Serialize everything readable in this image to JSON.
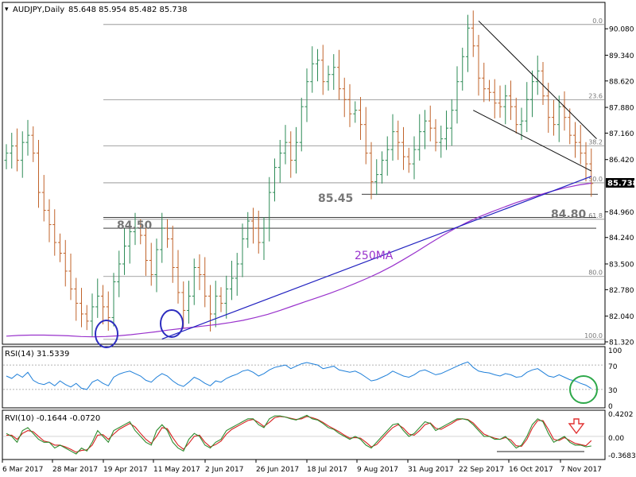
{
  "header": {
    "symbol": "AUDJPY,Daily",
    "ohlc": "85.648 85.954 85.482 85.738"
  },
  "price_axis": {
    "ticks": [
      "90.080",
      "89.340",
      "88.620",
      "87.880",
      "87.160",
      "86.420",
      "84.960",
      "84.240",
      "83.500",
      "82.780",
      "82.040",
      "81.320"
    ],
    "current_price": "85.738"
  },
  "fib_levels": [
    "0.0",
    "23.6",
    "38.2",
    "50.0",
    "61.8",
    "80.0",
    "100.0"
  ],
  "annotations": {
    "level_1": "84.50",
    "level_2": "85.45",
    "level_3": "84.80",
    "ma_label": "250MA"
  },
  "rsi_panel": {
    "label": "RSI(14) 31.5339",
    "ticks": [
      "100",
      "70",
      "30",
      "0"
    ]
  },
  "rvi_panel": {
    "label": "RVI(10) -0.1644 -0.0720",
    "ticks": [
      "0.4202",
      "0.00",
      "-0.3683"
    ]
  },
  "x_axis": {
    "dates": [
      "6 Mar 2017",
      "28 Mar 2017",
      "19 Apr 2017",
      "11 May 2017",
      "2 Jun 2017",
      "26 Jun 2017",
      "18 Jul 2017",
      "9 Aug 2017",
      "31 Aug 2017",
      "22 Sep 2017",
      "16 Oct 2017",
      "7 Nov 2017"
    ]
  },
  "colors": {
    "bull": "#2e8b57",
    "bear": "#c0632a",
    "ma": "#9932cc",
    "trendline": "#1f1fbf",
    "rsi_line": "#1e7fd9",
    "rvi_main": "#2e8b2e",
    "rvi_signal": "#d62020",
    "circle_blue": "#2d2dbf",
    "circle_green": "#2ea84a",
    "arrow": "#e03030"
  },
  "chart_data": {
    "type": "candlestick",
    "title": "AUDJPY,Daily",
    "price_range": [
      81.32,
      90.44
    ],
    "x": [
      "6 Mar 2017",
      "28 Mar 2017",
      "19 Apr 2017",
      "11 May 2017",
      "2 Jun 2017",
      "26 Jun 2017",
      "18 Jul 2017",
      "9 Aug 2017",
      "31 Aug 2017",
      "22 Sep 2017",
      "16 Oct 2017",
      "7 Nov 2017"
    ],
    "close_path": [
      86.6,
      86.8,
      86.4,
      86.9,
      87.1,
      86.6,
      85.5,
      85.0,
      84.6,
      84.1,
      83.8,
      83.3,
      82.8,
      82.4,
      82.1,
      81.9,
      82.3,
      82.6,
      82.3,
      82.0,
      83.0,
      83.5,
      84.0,
      84.4,
      84.5,
      84.3,
      83.6,
      83.2,
      83.9,
      84.5,
      84.2,
      83.4,
      82.7,
      82.2,
      82.6,
      83.4,
      83.2,
      82.6,
      82.1,
      82.6,
      82.4,
      82.8,
      83.1,
      83.5,
      84.2,
      84.7,
      84.5,
      84.1,
      84.5,
      85.5,
      86.2,
      86.6,
      86.9,
      86.4,
      86.9,
      87.9,
      88.6,
      89.1,
      89.2,
      88.6,
      88.8,
      89.0,
      88.4,
      88.1,
      87.7,
      87.8,
      87.4,
      86.6,
      85.8,
      86.0,
      86.4,
      86.7,
      87.2,
      86.9,
      86.5,
      86.3,
      86.7,
      87.2,
      87.5,
      87.3,
      86.9,
      87.0,
      87.3,
      87.8,
      88.6,
      89.3,
      90.1,
      89.6,
      88.7,
      88.4,
      88.3,
      88.0,
      87.9,
      88.2,
      87.9,
      87.4,
      87.5,
      88.1,
      88.6,
      88.9,
      88.2,
      87.6,
      87.4,
      87.9,
      87.6,
      87.1,
      86.9,
      86.6,
      86.3,
      85.75
    ],
    "ma250_path": [
      81.48,
      81.5,
      81.51,
      81.51,
      81.5,
      81.49,
      81.47,
      81.46,
      81.47,
      81.49,
      81.52,
      81.56,
      81.6,
      81.65,
      81.69,
      81.73,
      81.77,
      81.81,
      81.86,
      81.92,
      82.0,
      82.09,
      82.2,
      82.32,
      82.44,
      82.56,
      82.68,
      82.81,
      82.95,
      83.1,
      83.26,
      83.44,
      83.64,
      83.85,
      84.07,
      84.28,
      84.48,
      84.66,
      84.82,
      84.96,
      85.09,
      85.22,
      85.33,
      85.45,
      85.55,
      85.64,
      85.71,
      85.76
    ],
    "fib_retracement": {
      "0.0": 90.2,
      "23.6": 88.09,
      "38.2": 86.8,
      "50.0": 85.77,
      "61.8": 84.75,
      "80.0": 83.15,
      "100.0": 81.39
    },
    "horizontal_levels": [
      84.5,
      85.45,
      84.8
    ],
    "channel_upper": [
      [
        88,
        90.3
      ],
      [
        110,
        87.0
      ]
    ],
    "channel_lower": [
      [
        87,
        87.8
      ],
      [
        109,
        86.1
      ]
    ],
    "uptrend_line": [
      [
        29,
        81.4
      ],
      [
        109,
        85.95
      ]
    ],
    "rsi": {
      "name": "RSI(14)",
      "ylim": [
        0,
        100
      ],
      "levels": [
        70,
        30
      ],
      "values": [
        52,
        48,
        55,
        50,
        58,
        45,
        40,
        38,
        42,
        36,
        44,
        38,
        34,
        40,
        32,
        30,
        42,
        46,
        40,
        36,
        50,
        55,
        58,
        60,
        56,
        52,
        45,
        42,
        50,
        56,
        52,
        44,
        38,
        35,
        42,
        50,
        46,
        40,
        36,
        44,
        42,
        48,
        52,
        55,
        60,
        62,
        58,
        52,
        56,
        62,
        66,
        68,
        70,
        64,
        68,
        72,
        74,
        72,
        70,
        64,
        66,
        68,
        62,
        60,
        58,
        60,
        56,
        50,
        44,
        46,
        50,
        54,
        60,
        56,
        52,
        50,
        54,
        60,
        62,
        58,
        54,
        56,
        60,
        64,
        68,
        72,
        75,
        66,
        60,
        58,
        57,
        54,
        52,
        56,
        54,
        50,
        51,
        58,
        62,
        64,
        58,
        52,
        50,
        54,
        50,
        46,
        44,
        40,
        37,
        31.5
      ]
    },
    "rvi": {
      "name": "RVI(10)",
      "ylim": [
        -0.3683,
        0.4202
      ],
      "main": [
        0.05,
        0.0,
        -0.1,
        0.1,
        0.15,
        0.05,
        -0.05,
        -0.1,
        -0.1,
        -0.2,
        -0.15,
        -0.2,
        -0.25,
        -0.3,
        -0.2,
        -0.25,
        -0.1,
        0.1,
        0.0,
        -0.1,
        0.1,
        0.15,
        0.2,
        0.25,
        0.1,
        0.0,
        -0.1,
        -0.15,
        0.1,
        0.2,
        0.1,
        -0.1,
        -0.2,
        -0.25,
        -0.05,
        0.05,
        0.0,
        -0.15,
        -0.2,
        -0.1,
        -0.05,
        0.1,
        0.15,
        0.2,
        0.25,
        0.3,
        0.3,
        0.2,
        0.15,
        0.3,
        0.35,
        0.35,
        0.33,
        0.3,
        0.28,
        0.32,
        0.36,
        0.3,
        0.28,
        0.22,
        0.15,
        0.12,
        0.05,
        0.0,
        -0.05,
        0.0,
        -0.05,
        -0.15,
        -0.2,
        -0.1,
        0.0,
        0.1,
        0.2,
        0.22,
        0.1,
        0.0,
        0.05,
        0.15,
        0.25,
        0.22,
        0.1,
        0.15,
        0.2,
        0.25,
        0.3,
        0.3,
        0.28,
        0.2,
        0.1,
        0.0,
        0.0,
        -0.05,
        -0.05,
        0.0,
        -0.1,
        -0.2,
        -0.15,
        0.0,
        0.2,
        0.3,
        0.25,
        0.05,
        -0.1,
        -0.05,
        0.0,
        -0.1,
        -0.15,
        -0.15,
        -0.18,
        -0.164
      ],
      "signal": [
        0.02,
        0.02,
        -0.05,
        0.05,
        0.1,
        0.08,
        0.0,
        -0.08,
        -0.1,
        -0.15,
        -0.15,
        -0.18,
        -0.22,
        -0.27,
        -0.24,
        -0.23,
        -0.15,
        0.02,
        0.03,
        -0.05,
        0.04,
        0.12,
        0.17,
        0.22,
        0.16,
        0.05,
        -0.05,
        -0.12,
        0.0,
        0.15,
        0.13,
        -0.02,
        -0.15,
        -0.22,
        -0.12,
        0.0,
        0.02,
        -0.1,
        -0.18,
        -0.14,
        -0.08,
        0.04,
        0.12,
        0.17,
        0.22,
        0.27,
        0.29,
        0.24,
        0.17,
        0.24,
        0.32,
        0.34,
        0.33,
        0.31,
        0.29,
        0.3,
        0.34,
        0.32,
        0.29,
        0.24,
        0.18,
        0.13,
        0.08,
        0.02,
        -0.03,
        -0.02,
        -0.03,
        -0.1,
        -0.18,
        -0.14,
        -0.04,
        0.06,
        0.15,
        0.2,
        0.14,
        0.04,
        0.02,
        0.1,
        0.2,
        0.23,
        0.14,
        0.12,
        0.17,
        0.22,
        0.28,
        0.3,
        0.29,
        0.23,
        0.13,
        0.04,
        0.0,
        -0.03,
        -0.05,
        -0.02,
        -0.06,
        -0.16,
        -0.17,
        -0.05,
        0.14,
        0.27,
        0.27,
        0.12,
        -0.05,
        -0.07,
        -0.02,
        -0.07,
        -0.12,
        -0.14,
        -0.16,
        -0.072
      ]
    }
  }
}
